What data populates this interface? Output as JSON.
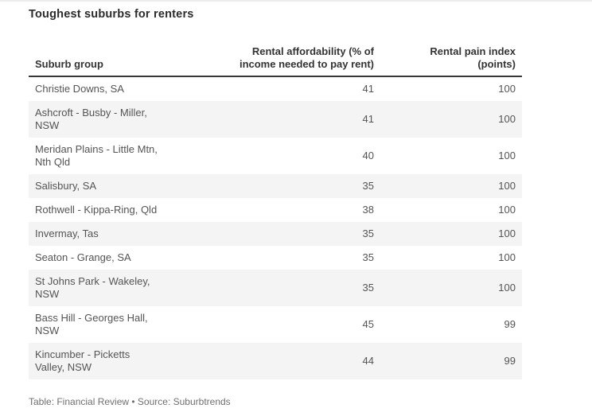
{
  "title": "Toughest suburbs for renters",
  "footer": "Table: Financial Review • Source: Suburbtrends",
  "colors": {
    "stripe": "#f4f4f4",
    "header_rule": "#383838",
    "title_text": "#2b2b2b",
    "header_text": "#333333",
    "body_text": "#545454",
    "footnote_text": "#6f6f6f",
    "background": "#ffffff"
  },
  "table": {
    "columns": [
      {
        "label": "Suburb group"
      },
      {
        "label": "Rental affordability (% of\nincome needed to pay rent)"
      },
      {
        "label": "Rental pain index\n(points)"
      }
    ],
    "rows": [
      {
        "name": "Christie Downs, SA",
        "affordability": "41",
        "pain_index": "100"
      },
      {
        "name": "Ashcroft - Busby - Miller,\nNSW",
        "affordability": "41",
        "pain_index": "100"
      },
      {
        "name": "Meridan Plains - Little Mtn,\nNth Qld",
        "affordability": "40",
        "pain_index": "100"
      },
      {
        "name": "Salisbury, SA",
        "affordability": "35",
        "pain_index": "100"
      },
      {
        "name": "Rothwell - Kippa-Ring, Qld",
        "affordability": "38",
        "pain_index": "100"
      },
      {
        "name": "Invermay, Tas",
        "affordability": "35",
        "pain_index": "100"
      },
      {
        "name": "Seaton - Grange, SA",
        "affordability": "35",
        "pain_index": "100"
      },
      {
        "name": "St Johns Park - Wakeley,\nNSW",
        "affordability": "35",
        "pain_index": "100"
      },
      {
        "name": "Bass Hill - Georges Hall,\nNSW",
        "affordability": "45",
        "pain_index": "99"
      },
      {
        "name": "Kincumber - Picketts\nValley, NSW",
        "affordability": "44",
        "pain_index": "99"
      }
    ]
  },
  "chart_data": {
    "type": "table",
    "title": "Toughest suburbs for renters",
    "columns": [
      "Suburb group",
      "Rental affordability (% of income needed to pay rent)",
      "Rental pain index (points)"
    ],
    "rows": [
      [
        "Christie Downs, SA",
        41,
        100
      ],
      [
        "Ashcroft - Busby - Miller, NSW",
        41,
        100
      ],
      [
        "Meridan Plains - Little Mtn, Nth Qld",
        40,
        100
      ],
      [
        "Salisbury, SA",
        35,
        100
      ],
      [
        "Rothwell - Kippa-Ring, Qld",
        38,
        100
      ],
      [
        "Invermay, Tas",
        35,
        100
      ],
      [
        "Seaton - Grange, SA",
        35,
        100
      ],
      [
        "St Johns Park - Wakeley, NSW",
        35,
        100
      ],
      [
        "Bass Hill - Georges Hall, NSW",
        45,
        99
      ],
      [
        "Kincumber - Picketts Valley, NSW",
        44,
        99
      ]
    ],
    "footer": "Table: Financial Review • Source: Suburbtrends",
    "layout_hints": {
      "striped_rows": "even rows shaded",
      "numeric_columns_alignment": "right",
      "header_rule": "2px dark line under column headers"
    }
  }
}
